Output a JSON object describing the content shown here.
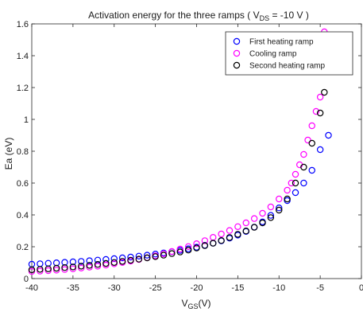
{
  "chart_data": {
    "type": "scatter",
    "title": {
      "prefix": "Activation energy for the three ramps ( V",
      "sub": "DS",
      "suffix": " = -10 V )"
    },
    "xlabel": {
      "main": "V",
      "sub": "GS",
      "suffix": "(V)"
    },
    "ylabel": "Ea (eV)",
    "xlim": [
      -40,
      0
    ],
    "ylim": [
      0,
      1.6
    ],
    "xticks": [
      -40,
      -35,
      -30,
      -25,
      -20,
      -15,
      -10,
      -5,
      0
    ],
    "yticks": [
      0,
      0.2,
      0.4,
      0.6,
      0.8,
      1,
      1.2,
      1.4,
      1.6
    ],
    "xtick_labels": [
      "-40",
      "-35",
      "-30",
      "-25",
      "-20",
      "-15",
      "-10",
      "-5",
      "0"
    ],
    "ytick_labels": [
      "0",
      "0.2",
      "0.4",
      "0.6",
      "0.8",
      "1",
      "1.2",
      "1.4",
      "1.6"
    ],
    "marker": "open-circle",
    "grid": false,
    "legend_position": "top-right",
    "series": [
      {
        "name": "First heating ramp",
        "color": "#0000ff",
        "x": [
          -40,
          -39,
          -38,
          -37,
          -36,
          -35,
          -34,
          -33,
          -32,
          -31,
          -30,
          -29,
          -28,
          -27,
          -26,
          -25,
          -24,
          -23,
          -22,
          -21,
          -20,
          -19,
          -18,
          -17,
          -16,
          -15,
          -14,
          -13,
          -12,
          -11,
          -10,
          -9,
          -8,
          -7,
          -6,
          -5,
          -4
        ],
        "y": [
          0.09,
          0.093,
          0.096,
          0.099,
          0.102,
          0.105,
          0.108,
          0.112,
          0.116,
          0.12,
          0.125,
          0.13,
          0.135,
          0.141,
          0.147,
          0.154,
          0.161,
          0.169,
          0.177,
          0.187,
          0.197,
          0.209,
          0.222,
          0.237,
          0.254,
          0.273,
          0.296,
          0.323,
          0.356,
          0.397,
          0.444,
          0.49,
          0.54,
          0.6,
          0.68,
          0.81,
          0.9
        ]
      },
      {
        "name": "Cooling ramp",
        "color": "#ff00ff",
        "x": [
          -40,
          -39,
          -38,
          -37,
          -36,
          -35,
          -34,
          -33,
          -32,
          -31,
          -30,
          -29,
          -28,
          -27,
          -26,
          -25,
          -24,
          -23,
          -22,
          -21,
          -20,
          -19,
          -18,
          -17,
          -16,
          -15,
          -14,
          -13,
          -12,
          -11,
          -10,
          -9,
          -8.5,
          -8,
          -7.5,
          -7,
          -6.5,
          -6,
          -5.5,
          -5,
          -4.5
        ],
        "y": [
          0.045,
          0.047,
          0.05,
          0.053,
          0.057,
          0.061,
          0.066,
          0.072,
          0.078,
          0.085,
          0.093,
          0.101,
          0.11,
          0.12,
          0.131,
          0.143,
          0.156,
          0.17,
          0.185,
          0.201,
          0.219,
          0.238,
          0.259,
          0.28,
          0.302,
          0.326,
          0.35,
          0.377,
          0.41,
          0.45,
          0.5,
          0.555,
          0.6,
          0.655,
          0.715,
          0.78,
          0.87,
          0.96,
          1.05,
          1.14,
          1.55
        ]
      },
      {
        "name": "Second heating ramp",
        "color": "#000000",
        "x": [
          -40,
          -39,
          -38,
          -37,
          -36,
          -35,
          -34,
          -33,
          -32,
          -31,
          -30,
          -29,
          -28,
          -27,
          -26,
          -25,
          -24,
          -23,
          -22,
          -21,
          -20,
          -19,
          -18,
          -17,
          -16,
          -15,
          -14,
          -13,
          -12,
          -11,
          -10,
          -9,
          -8,
          -7,
          -6,
          -5,
          -4.5
        ],
        "y": [
          0.055,
          0.058,
          0.061,
          0.065,
          0.069,
          0.073,
          0.078,
          0.083,
          0.089,
          0.095,
          0.101,
          0.108,
          0.115,
          0.122,
          0.13,
          0.138,
          0.147,
          0.157,
          0.167,
          0.179,
          0.192,
          0.207,
          0.222,
          0.239,
          0.258,
          0.278,
          0.299,
          0.322,
          0.35,
          0.383,
          0.43,
          0.5,
          0.6,
          0.7,
          0.85,
          1.04,
          1.17
        ]
      }
    ]
  }
}
